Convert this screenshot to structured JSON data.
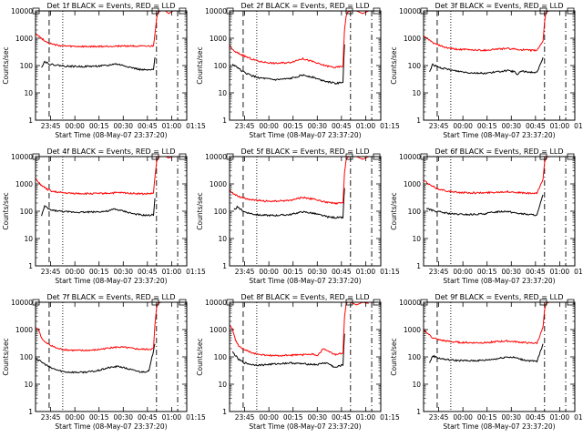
{
  "chart_data": [
    {
      "type": "line",
      "title": "Det 1f BLACK = Events, RED = LLD",
      "xlabel": "Start Time (08-May-07 23:37:20)",
      "ylabel": "Counts/sec",
      "yscale": "log",
      "ylim": [
        1,
        10000
      ],
      "xlim_minutes": [
        0,
        100
      ],
      "x_ticks": [
        "23:45",
        "00:00",
        "00:15",
        "00:30",
        "00:45",
        "01:00",
        "01:15"
      ],
      "y_ticks": [
        "1",
        "10",
        "100",
        "1000",
        "10000"
      ],
      "series": [
        {
          "name": "Events",
          "color": "#000000",
          "x": [
            0,
            3,
            4,
            6,
            10,
            20,
            30,
            40,
            48,
            52,
            55,
            60,
            65,
            70,
            75,
            78,
            79
          ],
          "values": [
            null,
            null,
            90,
            140,
            110,
            95,
            92,
            95,
            100,
            115,
            110,
            95,
            80,
            70,
            68,
            70,
            200
          ]
        },
        {
          "name": "LLD",
          "color": "#ff0000",
          "x": [
            0,
            2,
            5,
            8,
            12,
            18,
            25,
            35,
            45,
            55,
            65,
            72,
            78,
            79,
            80,
            81,
            83,
            86,
            88,
            91,
            94
          ],
          "values": [
            1600,
            1200,
            900,
            700,
            580,
            520,
            500,
            490,
            500,
            520,
            520,
            500,
            520,
            1500,
            5000,
            9000,
            10000,
            10000,
            8000,
            10000,
            10000
          ]
        }
      ]
    },
    {
      "type": "line",
      "title": "Det 2f BLACK = Events, RED = LLD",
      "xlabel": "Start Time (08-May-07 23:37:20)",
      "ylabel": "Counts/sec",
      "yscale": "log",
      "ylim": [
        1,
        10000
      ],
      "xlim_minutes": [
        0,
        100
      ],
      "x_ticks": [
        "23:45",
        "00:00",
        "00:15",
        "00:30",
        "00:45",
        "01:00",
        "01:15"
      ],
      "y_ticks": [
        "1",
        "10",
        "100",
        "1000",
        "10000"
      ],
      "series": [
        {
          "name": "Events",
          "color": "#000000",
          "x": [
            2,
            5,
            7,
            10,
            15,
            20,
            30,
            40,
            48,
            55,
            60,
            65,
            70,
            75,
            76
          ],
          "values": [
            110,
            90,
            70,
            55,
            42,
            35,
            30,
            33,
            45,
            38,
            30,
            26,
            22,
            25,
            600
          ]
        },
        {
          "name": "LLD",
          "color": "#ff0000",
          "x": [
            0,
            3,
            6,
            10,
            15,
            20,
            30,
            40,
            48,
            55,
            60,
            65,
            70,
            75,
            76,
            77,
            78,
            80,
            84,
            88,
            92
          ],
          "values": [
            550,
            330,
            280,
            220,
            170,
            140,
            120,
            130,
            180,
            140,
            110,
            95,
            85,
            95,
            2000,
            6000,
            9000,
            10000,
            10000,
            8000,
            10000
          ]
        }
      ]
    },
    {
      "type": "line",
      "title": "Det 3f BLACK = Events, RED = LLD",
      "xlabel": "Start Time (08-May-07 23:37:20)",
      "ylabel": "Counts/sec",
      "yscale": "log",
      "ylim": [
        1,
        10000
      ],
      "xlim_minutes": [
        0,
        100
      ],
      "x_ticks": [
        "23:45",
        "00:00",
        "00:15",
        "00:30",
        "00:45",
        "01:00",
        "01:15"
      ],
      "y_ticks": [
        "1",
        "10",
        "100",
        "1000",
        "10000"
      ],
      "series": [
        {
          "name": "Events",
          "color": "#000000",
          "x": [
            4,
            6,
            10,
            20,
            30,
            40,
            48,
            55,
            60,
            62,
            64,
            70,
            75,
            79
          ],
          "values": [
            60,
            110,
            85,
            65,
            55,
            52,
            58,
            65,
            60,
            45,
            62,
            58,
            55,
            200
          ]
        },
        {
          "name": "LLD",
          "color": "#ff0000",
          "x": [
            0,
            3,
            6,
            10,
            15,
            20,
            30,
            40,
            48,
            55,
            60,
            65,
            70,
            75,
            79,
            80,
            81,
            83,
            86,
            90,
            94
          ],
          "values": [
            1200,
            900,
            700,
            550,
            450,
            400,
            380,
            360,
            400,
            420,
            400,
            380,
            360,
            360,
            800,
            4000,
            9000,
            10000,
            10000,
            10000,
            10000
          ]
        }
      ]
    },
    {
      "type": "line",
      "title": "Det 4f BLACK = Events, RED = LLD",
      "xlabel": "Start Time (08-May-07 23:37:20)",
      "ylabel": "Counts/sec",
      "yscale": "log",
      "ylim": [
        1,
        10000
      ],
      "xlim_minutes": [
        0,
        100
      ],
      "x_ticks": [
        "23:45",
        "00:00",
        "00:15",
        "00:30",
        "00:45",
        "01:00",
        "01:15"
      ],
      "y_ticks": [
        "1",
        "10",
        "100",
        "1000",
        "10000"
      ],
      "series": [
        {
          "name": "Events",
          "color": "#000000",
          "x": [
            4,
            6,
            10,
            20,
            30,
            40,
            48,
            52,
            55,
            60,
            65,
            70,
            75,
            78,
            79
          ],
          "values": [
            70,
            150,
            110,
            95,
            92,
            95,
            100,
            120,
            110,
            95,
            80,
            72,
            70,
            75,
            300
          ]
        },
        {
          "name": "LLD",
          "color": "#ff0000",
          "x": [
            0,
            2,
            5,
            8,
            12,
            18,
            25,
            35,
            45,
            55,
            65,
            72,
            78,
            79,
            80,
            81,
            83,
            86,
            88,
            91,
            94
          ],
          "values": [
            1600,
            1100,
            800,
            620,
            520,
            470,
            450,
            440,
            450,
            480,
            450,
            430,
            450,
            1800,
            6000,
            9500,
            10000,
            10000,
            9000,
            10000,
            10000
          ]
        }
      ]
    },
    {
      "type": "line",
      "title": "Det 5f BLACK = Events, RED = LLD",
      "xlabel": "Start Time (08-May-07 23:37:20)",
      "ylabel": "Counts/sec",
      "yscale": "log",
      "ylim": [
        1,
        10000
      ],
      "xlim_minutes": [
        0,
        100
      ],
      "x_ticks": [
        "23:45",
        "00:00",
        "00:15",
        "00:30",
        "00:45",
        "01:00",
        "01:15"
      ],
      "y_ticks": [
        "1",
        "10",
        "100",
        "1000",
        "10000"
      ],
      "series": [
        {
          "name": "Events",
          "color": "#000000",
          "x": [
            3,
            5,
            7,
            10,
            15,
            20,
            30,
            40,
            48,
            55,
            60,
            65,
            70,
            75,
            76
          ],
          "values": [
            110,
            140,
            120,
            95,
            80,
            72,
            70,
            75,
            95,
            85,
            72,
            62,
            58,
            60,
            700
          ]
        },
        {
          "name": "LLD",
          "color": "#ff0000",
          "x": [
            0,
            3,
            6,
            10,
            15,
            20,
            30,
            40,
            48,
            55,
            60,
            65,
            70,
            75,
            76,
            77,
            78,
            80,
            84,
            88,
            92
          ],
          "values": [
            600,
            420,
            350,
            300,
            260,
            240,
            230,
            250,
            320,
            280,
            240,
            210,
            190,
            200,
            2500,
            7000,
            9500,
            10000,
            10000,
            8000,
            10000
          ]
        }
      ]
    },
    {
      "type": "line",
      "title": "Det 6f BLACK = Events, RED = LLD",
      "xlabel": "Start Time (08-May-07 23:37:20)",
      "ylabel": "Counts/sec",
      "yscale": "log",
      "ylim": [
        1,
        10000
      ],
      "xlim_minutes": [
        0,
        100
      ],
      "x_ticks": [
        "23:45",
        "00:00",
        "00:15",
        "00:30",
        "00:45",
        "01:00",
        "01:15"
      ],
      "y_ticks": [
        "1",
        "10",
        "100",
        "1000",
        "10000"
      ],
      "series": [
        {
          "name": "Events",
          "color": "#000000",
          "x": [
            2,
            5,
            10,
            15,
            20,
            30,
            40,
            48,
            55,
            60,
            65,
            70,
            75,
            79
          ],
          "values": [
            130,
            110,
            95,
            85,
            78,
            75,
            80,
            95,
            100,
            88,
            80,
            75,
            72,
            400
          ]
        },
        {
          "name": "LLD",
          "color": "#ff0000",
          "x": [
            0,
            3,
            6,
            10,
            15,
            20,
            30,
            40,
            48,
            55,
            60,
            65,
            70,
            75,
            79,
            80,
            81,
            83,
            86,
            90,
            94
          ],
          "values": [
            1400,
            1000,
            800,
            650,
            560,
            500,
            470,
            470,
            500,
            520,
            500,
            470,
            450,
            450,
            1500,
            6000,
            9500,
            10000,
            10000,
            10000,
            10000
          ]
        }
      ]
    },
    {
      "type": "line",
      "title": "Det 7f BLACK = Events, RED = LLD",
      "xlabel": "Start Time (08-May-07 23:37:20)",
      "ylabel": "Counts/sec",
      "yscale": "log",
      "ylim": [
        1,
        10000
      ],
      "xlim_minutes": [
        0,
        100
      ],
      "x_ticks": [
        "23:45",
        "00:00",
        "00:15",
        "00:30",
        "00:45",
        "01:00",
        "01:15"
      ],
      "y_ticks": [
        "1",
        "10",
        "100",
        "1000",
        "10000"
      ],
      "series": [
        {
          "name": "Events",
          "color": "#000000",
          "x": [
            0,
            3,
            6,
            10,
            15,
            20,
            30,
            40,
            48,
            55,
            60,
            65,
            70,
            75,
            79
          ],
          "values": [
            90,
            70,
            55,
            40,
            32,
            28,
            27,
            30,
            40,
            45,
            38,
            32,
            28,
            30,
            300
          ]
        },
        {
          "name": "LLD",
          "color": "#ff0000",
          "x": [
            0,
            2,
            4,
            6,
            10,
            15,
            20,
            30,
            40,
            48,
            55,
            60,
            65,
            70,
            75,
            78,
            79,
            80,
            81,
            83
          ],
          "values": [
            1200,
            1000,
            500,
            350,
            260,
            200,
            180,
            170,
            180,
            210,
            230,
            220,
            200,
            190,
            190,
            200,
            1500,
            6000,
            9000,
            10000
          ]
        }
      ]
    },
    {
      "type": "line",
      "title": "Det 8f BLACK = Events, RED = LLD",
      "xlabel": "Start Time (08-May-07 23:37:20)",
      "ylabel": "Counts/sec",
      "yscale": "log",
      "ylim": [
        1,
        10000
      ],
      "xlim_minutes": [
        0,
        100
      ],
      "x_ticks": [
        "23:45",
        "00:00",
        "00:15",
        "00:30",
        "00:45",
        "01:00",
        "01:15"
      ],
      "y_ticks": [
        "1",
        "10",
        "100",
        "1000",
        "10000"
      ],
      "series": [
        {
          "name": "Events",
          "color": "#000000",
          "x": [
            2,
            4,
            6,
            10,
            15,
            20,
            30,
            40,
            50,
            58,
            62,
            65,
            70,
            73,
            75,
            76
          ],
          "values": [
            150,
            110,
            80,
            60,
            52,
            50,
            55,
            60,
            55,
            52,
            60,
            58,
            40,
            48,
            50,
            700
          ]
        },
        {
          "name": "LLD",
          "color": "#ff0000",
          "x": [
            0,
            2,
            4,
            6,
            10,
            15,
            20,
            30,
            40,
            50,
            55,
            58,
            62,
            66,
            70,
            75,
            76,
            77,
            78,
            80,
            84,
            88,
            92
          ],
          "values": [
            1500,
            1000,
            400,
            250,
            180,
            140,
            120,
            110,
            115,
            120,
            130,
            110,
            200,
            150,
            120,
            140,
            3000,
            8000,
            10000,
            10000,
            8000,
            10000,
            9000
          ]
        }
      ]
    },
    {
      "type": "line",
      "title": "Det 9f BLACK = Events, RED = LLD",
      "xlabel": "Start Time (08-May-07 23:37:20)",
      "ylabel": "Counts/sec",
      "yscale": "log",
      "ylim": [
        1,
        10000
      ],
      "xlim_minutes": [
        0,
        100
      ],
      "x_ticks": [
        "23:45",
        "00:00",
        "00:15",
        "00:30",
        "00:45",
        "01:00",
        "01:15"
      ],
      "y_ticks": [
        "1",
        "10",
        "100",
        "1000",
        "10000"
      ],
      "series": [
        {
          "name": "Events",
          "color": "#000000",
          "x": [
            4,
            6,
            10,
            15,
            20,
            30,
            40,
            48,
            55,
            60,
            65,
            70,
            75,
            79
          ],
          "values": [
            60,
            110,
            90,
            80,
            75,
            72,
            75,
            85,
            100,
            95,
            80,
            72,
            68,
            300
          ]
        },
        {
          "name": "LLD",
          "color": "#ff0000",
          "x": [
            0,
            3,
            6,
            10,
            15,
            20,
            30,
            40,
            48,
            55,
            60,
            65,
            70,
            75,
            79,
            80,
            81,
            83,
            86,
            90,
            94
          ],
          "values": [
            1000,
            700,
            500,
            420,
            380,
            350,
            330,
            330,
            360,
            380,
            360,
            340,
            320,
            320,
            1200,
            5000,
            9000,
            10000,
            10000,
            10000,
            10000
          ]
        }
      ]
    }
  ]
}
